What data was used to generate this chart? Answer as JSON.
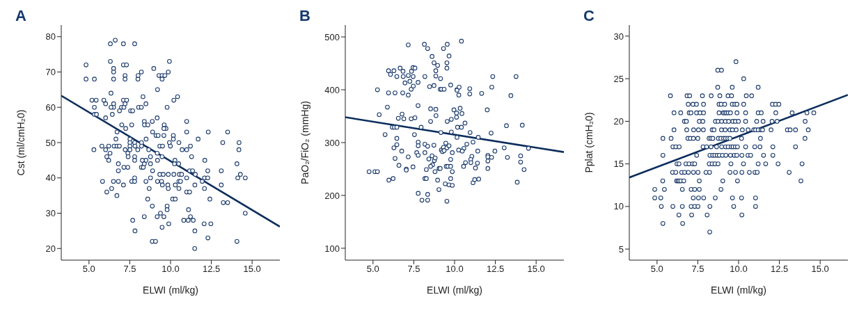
{
  "chart_data": [
    {
      "type": "scatter",
      "title": "A",
      "xlabel": "ELWI (ml/kg)",
      "ylabel": "Cst (ml/cmH₂0)",
      "xlim": [
        3.3,
        16.7
      ],
      "ylim": [
        16.7,
        83.3
      ],
      "xticks": [
        {
          "value": 5,
          "label": "5.0"
        },
        {
          "value": 7.5,
          "label": "7.5"
        },
        {
          "value": 10,
          "label": "10.0"
        },
        {
          "value": 12.5,
          "label": "12.5"
        },
        {
          "value": 15,
          "label": "15.0"
        }
      ],
      "yticks": [
        20,
        30,
        40,
        50,
        60,
        70,
        80
      ],
      "series": [
        {
          "marker": "circle",
          "color": "#1b3a6b",
          "x": [
            4.82,
            4.82,
            5.33,
            5.18,
            5.44,
            5.33,
            5.33,
            5.46,
            5.3,
            5.79,
            5.91,
            6.02,
            6.02,
            6.02,
            6.09,
            6.21,
            6.21,
            6.29,
            5.83,
            6.09,
            6.39,
            6.31,
            6.61,
            6.31,
            6.51,
            6.51,
            6.51,
            6.35,
            6.51,
            6.51,
            6.35,
            6.43,
            6.54,
            6.72,
            6.86,
            6.65,
            6.72,
            6.87,
            6.99,
            7.11,
            7.11,
            7.3,
            7.21,
            7.21,
            7.11,
            7.31,
            7.14,
            7.21,
            7.01,
            7.25,
            6.8,
            6.8,
            7.14,
            7.38,
            6.5,
            6.8,
            7.11,
            6.71,
            7.22,
            7.38,
            7.4,
            7.51,
            7.51,
            7.51,
            7.51,
            7.62,
            7.55,
            7.68,
            7.62,
            7.8,
            7.8,
            7.68,
            7.82,
            7.8,
            7.8,
            7.82,
            7.8,
            7.8,
            7.99,
            8,
            8.01,
            8.21,
            8.04,
            8.21,
            8.31,
            8.49,
            8.39,
            8.4,
            8.61,
            8.88,
            8.5,
            8.22,
            8.22,
            8.66,
            8.9,
            8.21,
            8.33,
            8.39,
            8.49,
            8.27,
            8.49,
            8.69,
            8.6,
            8.88,
            8.39,
            8.88,
            8.77,
            8.9,
            8.77,
            8.77,
            8.97,
            9.93,
            9.86,
            9.29,
            9.48,
            9.65,
            9.48,
            9.2,
            10.43,
            10.2,
            9.79,
            9.18,
            9.61,
            9.72,
            9.59,
            9.11,
            9.24,
            9.59,
            10.99,
            10.99,
            12.31,
            13.5,
            10.17,
            10.17,
            11.69,
            13.2,
            14.2,
            9.93,
            10.51,
            9.34,
            9.51,
            9.99,
            11.22,
            10.71,
            10.99,
            14.19,
            9.18,
            9.48,
            11.29,
            10.27,
            9.2,
            12.1,
            10.24,
            10.5,
            14.07,
            11.17,
            11.35,
            12.28,
            13.11,
            14.28,
            9.34,
            9.55,
            9.86,
            10.2,
            10.54,
            10.68,
            11.52,
            12.08,
            12.28,
            14.12,
            14.58,
            10.99,
            9.2,
            9.45,
            10.51,
            10.61,
            11.94,
            9.5,
            9.83,
            10.29,
            11.49,
            13.11,
            9.86,
            10.51,
            12.08,
            10.99,
            11.17,
            10.13,
            10.29,
            12.41,
            13.23,
            13.5,
            9.79,
            9.79,
            11.1,
            9.38,
            9.59,
            9.18,
            11.22,
            10.81,
            11.08,
            11.39,
            14.58,
            9.48,
            9.89,
            11.49,
            12.06,
            12.47,
            12.29,
            9.08,
            14.07,
            11.48
          ],
          "values": [
            72,
            68,
            68,
            62,
            62,
            60,
            58,
            58,
            48,
            49,
            62,
            61,
            57,
            48,
            46,
            49,
            45,
            47,
            39,
            36,
            37,
            78,
            79,
            73,
            71,
            70,
            68,
            64,
            61,
            60,
            60,
            58,
            49,
            49,
            49,
            51,
            53,
            59,
            60,
            78,
            72,
            72,
            69,
            68,
            62,
            62,
            60,
            61,
            55,
            54,
            44,
            42,
            43,
            43,
            39,
            39,
            38,
            35,
            48,
            47,
            46,
            51,
            50,
            49,
            48,
            55,
            59,
            59,
            39,
            39,
            40,
            28,
            25,
            78,
            50,
            49,
            46,
            45,
            48,
            68,
            69,
            70,
            60,
            60,
            63,
            61,
            56,
            55,
            55,
            56,
            51,
            50,
            49,
            48,
            53,
            43,
            43,
            44,
            45,
            45,
            39,
            37,
            34,
            32,
            29,
            22,
            40,
            42,
            44,
            46,
            71,
            73,
            70,
            69,
            69,
            69,
            68,
            65,
            63,
            62,
            60,
            57,
            55,
            54,
            54,
            52,
            52,
            52,
            56,
            53,
            53,
            53,
            52,
            51,
            51,
            50,
            50,
            50,
            50,
            49,
            49,
            49,
            49,
            48,
            48,
            48,
            47,
            46,
            46,
            45,
            45,
            45,
            44,
            44,
            44,
            42,
            42,
            42,
            42,
            41,
            41,
            41,
            41,
            41,
            41,
            41,
            41,
            40,
            40,
            40,
            40,
            40,
            39,
            39,
            39,
            39,
            39,
            38,
            38,
            38,
            38,
            38,
            37,
            37,
            37,
            36,
            36,
            34,
            34,
            34,
            33,
            33,
            32,
            31,
            31,
            30,
            29,
            29,
            29,
            28,
            28,
            28,
            30,
            26,
            27,
            25,
            27,
            27,
            23,
            22,
            22,
            20
          ]
        },
        {
          "type": "line",
          "color": "#0b2d5c",
          "x": [
            3.3,
            16.7
          ],
          "values": [
            63.3,
            26.2
          ]
        }
      ]
    },
    {
      "type": "scatter",
      "title": "B",
      "xlabel": "ELWI (ml/kg)",
      "ylabel": "PaO₂/FiO₂ (mmHg)",
      "xlim": [
        3.3,
        16.7
      ],
      "ylim": [
        77.5,
        522.5
      ],
      "xticks": [
        {
          "value": 5,
          "label": "5.0"
        },
        {
          "value": 7.5,
          "label": "7.5"
        },
        {
          "value": 10,
          "label": "10.0"
        },
        {
          "value": 12.5,
          "label": "12.5"
        },
        {
          "value": 15,
          "label": "15.0"
        }
      ],
      "yticks": [
        100,
        200,
        300,
        400,
        500
      ],
      "series": [
        {
          "marker": "circle",
          "color": "#1b3a6b",
          "x": [
            4.76,
            5.11,
            5.27,
            5.27,
            5.38,
            5.74,
            5.88,
            5.95,
            6.07,
            6.28,
            6.46,
            5.95,
            6.35,
            5.97,
            6.23,
            6.18,
            6.31,
            6.46,
            6.55,
            6.46,
            6.46,
            6.28,
            6.35,
            6.59,
            6.66,
            6.84,
            6.85,
            6.96,
            6.82,
            7.16,
            6.78,
            6.89,
            6.76,
            7.04,
            7.04,
            7.16,
            7.16,
            7.26,
            7.34,
            7.36,
            7.45,
            7.46,
            7.47,
            7.57,
            7.76,
            7.76,
            7.34,
            7.57,
            7.54,
            7.16,
            7.45,
            7.68,
            7.77,
            7.77,
            7.77,
            7.77,
            7.95,
            8,
            8.15,
            8.18,
            8.35,
            8.18,
            8.18,
            8.18,
            8.27,
            8.35,
            8.27,
            8.35,
            8.35,
            8.42,
            8.47,
            8.53,
            8.53,
            8.62,
            8.62,
            8.65,
            8.53,
            8.74,
            8.74,
            8.73,
            8.76,
            8.81,
            8.85,
            8.85,
            8.85,
            8.86,
            8.8,
            8.96,
            8.96,
            9.05,
            9.04,
            9.12,
            9.14,
            9.12,
            9.2,
            9.36,
            9.16,
            9.19,
            9.26,
            9.32,
            9.36,
            9.46,
            9.53,
            9.66,
            9.43,
            9.53,
            9.32,
            9.55,
            9.53,
            9.53,
            9.66,
            9.76,
            9.55,
            9.8,
            9.8,
            9.86,
            9.76,
            9.49,
            9.59,
            9.76,
            9.86,
            9.76,
            9.66,
            9.86,
            9.96,
            10.14,
            10.42,
            10.15,
            10.28,
            10.26,
            10.93,
            10.93,
            11.66,
            12.34,
            12.28,
            13.77,
            13.45,
            10.12,
            10.12,
            10.34,
            10.45,
            10.18,
            10.42,
            10.64,
            10.95,
            10.15,
            12,
            12.24,
            13.18,
            14.15,
            11.45,
            11.13,
            10.75,
            10.57,
            10.25,
            10.47,
            11.42,
            12.47,
            13.04,
            14.53,
            11.06,
            10.99,
            10.67,
            10.55,
            11,
            11.4,
            11.28,
            12.04,
            12.04,
            12.27,
            12.04,
            12.04,
            13.24,
            14.05,
            14.05,
            14.26,
            11.13,
            11.23,
            11.48,
            13.84
          ],
          "values": [
            245,
            245,
            245,
            400,
            353,
            315,
            367,
            436,
            429,
            436,
            425,
            394,
            394,
            229,
            232,
            329,
            329,
            329,
            346,
            308,
            296,
            290,
            270,
            257,
            441,
            435,
            425,
            413,
            394,
            390,
            354,
            345,
            284,
            250,
            248,
            485,
            427,
            416,
            401,
            435,
            442,
            425,
            407,
            441,
            414,
            370,
            345,
            347,
            315,
            273,
            254,
            281,
            301,
            294,
            276,
            204,
            329,
            191,
            486,
            425,
            478,
            297,
            281,
            232,
            232,
            293,
            249,
            191,
            202,
            269,
            406,
            364,
            340,
            463,
            275,
            258,
            255,
            451,
            408,
            295,
            266,
            271,
            436,
            426,
            363,
            351,
            245,
            446,
            229,
            251,
            211,
            251,
            421,
            401,
            401,
            401,
            319,
            286,
            283,
            291,
            285,
            299,
            290,
            294,
            222,
            189,
            478,
            486,
            451,
            441,
            464,
            409,
            340,
            344,
            320,
            281,
            268,
            255,
            255,
            255,
            245,
            232,
            220,
            219,
            362,
            400,
            492,
            399,
            405,
            390,
            402,
            392,
            393,
            425,
            405,
            425,
            389,
            356,
            348,
            365,
            355,
            329,
            329,
            337,
            319,
            310,
            362,
            318,
            332,
            333,
            310,
            301,
            297,
            289,
            286,
            284,
            284,
            284,
            290,
            289,
            274,
            268,
            262,
            255,
            262,
            261,
            252,
            276,
            273,
            272,
            265,
            251,
            272,
            275,
            263,
            249,
            224,
            230,
            231,
            225
          ]
        },
        {
          "type": "line",
          "color": "#0b2d5c",
          "x": [
            3.3,
            16.7
          ],
          "values": [
            348,
            282
          ]
        }
      ]
    },
    {
      "type": "scatter",
      "title": "C",
      "xlabel": "ELWI (ml/kg)",
      "ylabel": "Pplat (cmH₂0)",
      "xlim": [
        3.3,
        16.7
      ],
      "ylim": [
        3.7,
        31.3
      ],
      "xticks": [
        {
          "value": 5,
          "label": "5.0"
        },
        {
          "value": 7.5,
          "label": "7.5"
        },
        {
          "value": 10,
          "label": "10.0"
        },
        {
          "value": 12.5,
          "label": "12.5"
        },
        {
          "value": 15,
          "label": "15.0"
        }
      ],
      "yticks": [
        5,
        10,
        15,
        20,
        25,
        30
      ],
      "series": [
        {
          "marker": "circle",
          "color": "#1b3a6b",
          "x": [
            9.84,
            8.72,
            8.95,
            10.31,
            8.72,
            9.61,
            11.2,
            5.82,
            6.84,
            7.0,
            7.78,
            8.32,
            8.85,
            9.35,
            9.57,
            10.47,
            10.8,
            6.91,
            7.2,
            7.42,
            7.85,
            8.8,
            8.93,
            9.15,
            9.61,
            9.77,
            9.9,
            10.31,
            12.07,
            12.27,
            12.47,
            6.04,
            6.45,
            6.97,
            7.08,
            7.42,
            7.64,
            7.85,
            8.8,
            9.06,
            9.16,
            9.26,
            9.37,
            9.5,
            9.9,
            10.43,
            11.2,
            11.39,
            12.28,
            13.28,
            14.19,
            14.61,
            6.68,
            6.8,
            7.59,
            7.81,
            8.58,
            8.74,
            8.96,
            9.19,
            9.39,
            9.64,
            9.8,
            9.99,
            10.43,
            11.11,
            11.5,
            12.05,
            12.36,
            14.08,
            6.04,
            6.82,
            7.24,
            7.54,
            7.84,
            8.38,
            8.49,
            8.95,
            9.18,
            9.47,
            9.62,
            9.85,
            10.23,
            10.58,
            10.93,
            11.04,
            11.2,
            11.38,
            11.47,
            11.99,
            12.99,
            13.16,
            13.49,
            14.27,
            5.36,
            5.86,
            6.89,
            7.04,
            7.23,
            7.5,
            8.19,
            8.3,
            8.42,
            8.76,
            8.91,
            9.08,
            9.2,
            9.34,
            9.47,
            10.18,
            11.34,
            14.07,
            5.97,
            6.15,
            6.36,
            7.82,
            8.04,
            8.31,
            8.65,
            8.96,
            9.2,
            9.36,
            9.55,
            9.66,
            9.8,
            9.93,
            10.43,
            10.99,
            11.31,
            12.1,
            13.49,
            5.36,
            7.43,
            8.24,
            8.41,
            8.54,
            8.69,
            8.82,
            9.01,
            9.22,
            9.5,
            9.74,
            9.89,
            10.2,
            10.57,
            10.74,
            11.53,
            12.1,
            6.22,
            6.35,
            6.77,
            6.96,
            7.18,
            7.31,
            8.2,
            8.38,
            8.55,
            8.74,
            9.53,
            10.3,
            11.2,
            11.66,
            12.42,
            13.89,
            5.95,
            6.15,
            6.51,
            6.69,
            6.92,
            7.23,
            7.51,
            8.0,
            8.22,
            9.47,
            9.81,
            10.2,
            10.66,
            11.0,
            11.14,
            13.1,
            5.35,
            6.2,
            6.28,
            6.36,
            6.46,
            6.64,
            7.59,
            9.03,
            9.93,
            13.82,
            4.86,
            5.45,
            6.55,
            7.09,
            7.31,
            7.59,
            8.92,
            4.86,
            5.23,
            7.22,
            7.54,
            7.86,
            8.57,
            9.62,
            10.18,
            11.04,
            5.26,
            5.97,
            6.55,
            7.09,
            7.31,
            7.51,
            8.24,
            9.7,
            11.04,
            6.34,
            7.12,
            8.07,
            10.2,
            5.36,
            6.57,
            8.23
          ],
          "values": [
            27,
            26,
            26,
            25,
            24,
            24,
            24,
            23,
            23,
            23,
            23,
            23,
            23,
            23,
            23,
            23,
            23,
            22,
            22,
            22,
            22,
            22,
            22,
            22,
            22,
            22,
            22,
            22,
            22,
            22,
            22,
            21,
            21,
            21,
            21,
            21,
            21,
            21,
            21,
            21,
            21,
            21,
            21,
            21,
            21,
            21,
            21,
            21,
            21,
            21,
            21,
            21,
            20,
            20,
            20,
            20,
            20,
            20,
            20,
            20,
            20,
            20,
            20,
            20,
            20,
            20,
            20,
            20,
            20,
            20,
            19,
            19,
            19,
            19,
            19,
            19,
            19,
            19,
            19,
            19,
            19,
            19,
            19,
            19,
            19,
            19,
            19,
            19,
            19,
            19,
            19,
            19,
            19,
            19,
            18,
            18,
            18,
            18,
            18,
            18,
            18,
            18,
            18,
            18,
            18,
            18,
            18,
            18,
            18,
            18,
            18,
            18,
            17,
            17,
            17,
            17,
            17,
            17,
            17,
            17,
            17,
            17,
            17,
            17,
            17,
            17,
            17,
            17,
            17,
            17,
            17,
            16,
            16,
            16,
            16,
            16,
            16,
            16,
            16,
            16,
            16,
            16,
            16,
            16,
            16,
            16,
            16,
            16,
            15,
            15,
            15,
            15,
            15,
            15,
            15,
            15,
            15,
            15,
            15,
            15,
            15,
            15,
            15,
            15,
            14,
            14,
            14,
            14,
            14,
            14,
            14,
            14,
            14,
            14,
            14,
            14,
            14,
            14,
            14,
            14,
            13,
            13,
            13,
            13,
            13,
            13,
            13,
            13,
            13,
            13,
            12,
            12,
            12,
            12,
            12,
            12,
            12,
            11,
            11,
            11,
            11,
            11,
            11,
            11,
            11,
            11,
            10,
            10,
            10,
            10,
            10,
            10,
            10,
            10,
            10,
            9,
            9,
            9,
            9,
            8,
            8,
            7
          ]
        },
        {
          "type": "line",
          "color": "#0b2d5c",
          "x": [
            3.3,
            16.7
          ],
          "values": [
            13.4,
            23.1
          ]
        }
      ]
    }
  ]
}
